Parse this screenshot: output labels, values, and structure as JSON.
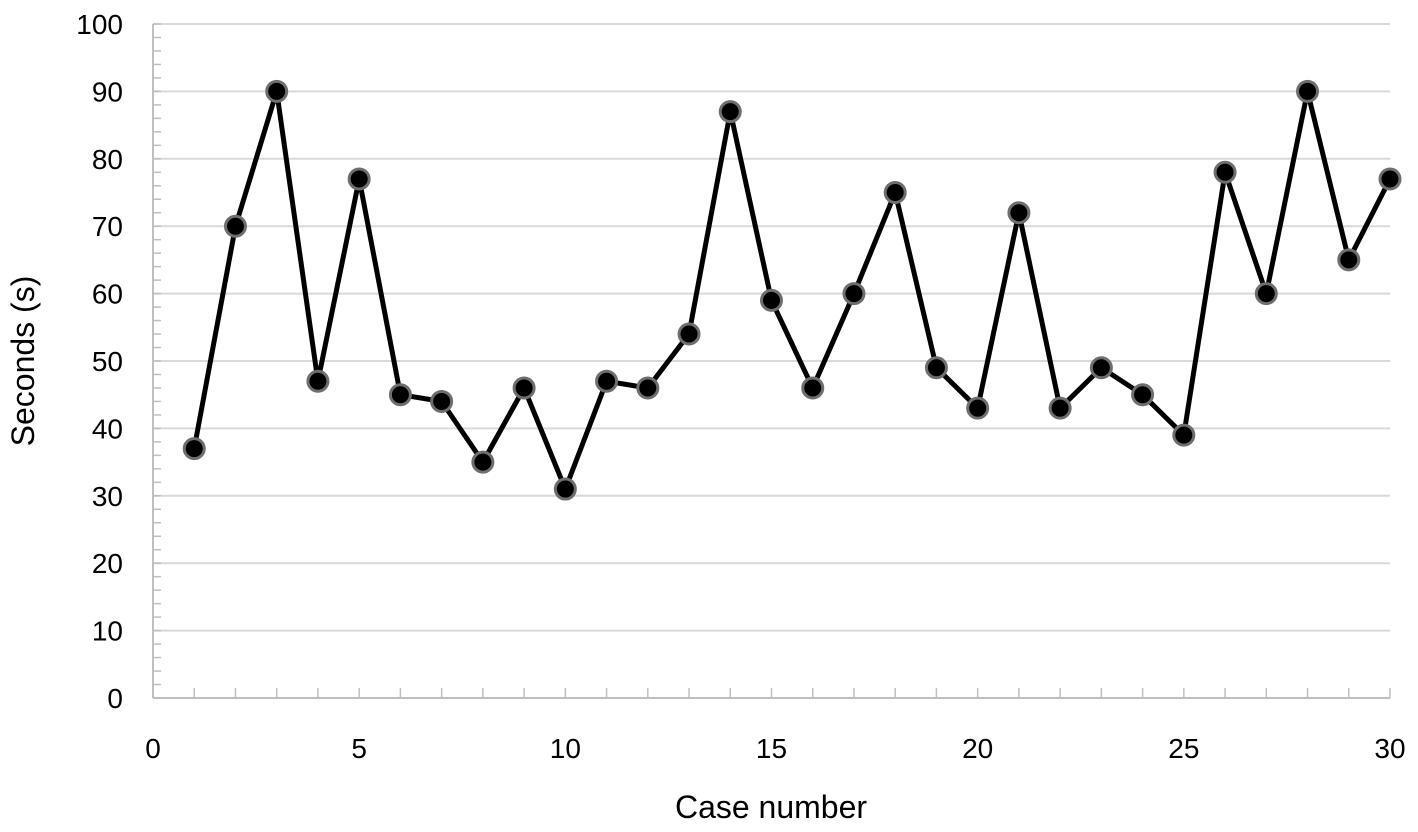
{
  "chart_data": {
    "type": "line",
    "title": "",
    "xlabel": "Case number",
    "ylabel": "Seconds (s)",
    "xlim": [
      0,
      30
    ],
    "ylim": [
      0,
      100
    ],
    "x_ticks": [
      0,
      5,
      10,
      15,
      20,
      25,
      30
    ],
    "y_ticks": [
      0,
      10,
      20,
      30,
      40,
      50,
      60,
      70,
      80,
      90,
      100
    ],
    "grid": true,
    "legend": "none",
    "series": [
      {
        "color": "#000000",
        "marker": "circle",
        "x": [
          1,
          2,
          3,
          4,
          5,
          6,
          7,
          8,
          9,
          10,
          11,
          12,
          13,
          14,
          15,
          16,
          17,
          18,
          19,
          20,
          21,
          22,
          23,
          24,
          25,
          26,
          27,
          28,
          29,
          30
        ],
        "values": [
          37,
          70,
          90,
          47,
          77,
          45,
          44,
          35,
          46,
          31,
          47,
          46,
          54,
          87,
          59,
          46,
          60,
          75,
          49,
          43,
          72,
          43,
          49,
          45,
          39,
          78,
          60,
          90,
          65,
          77
        ]
      }
    ]
  }
}
